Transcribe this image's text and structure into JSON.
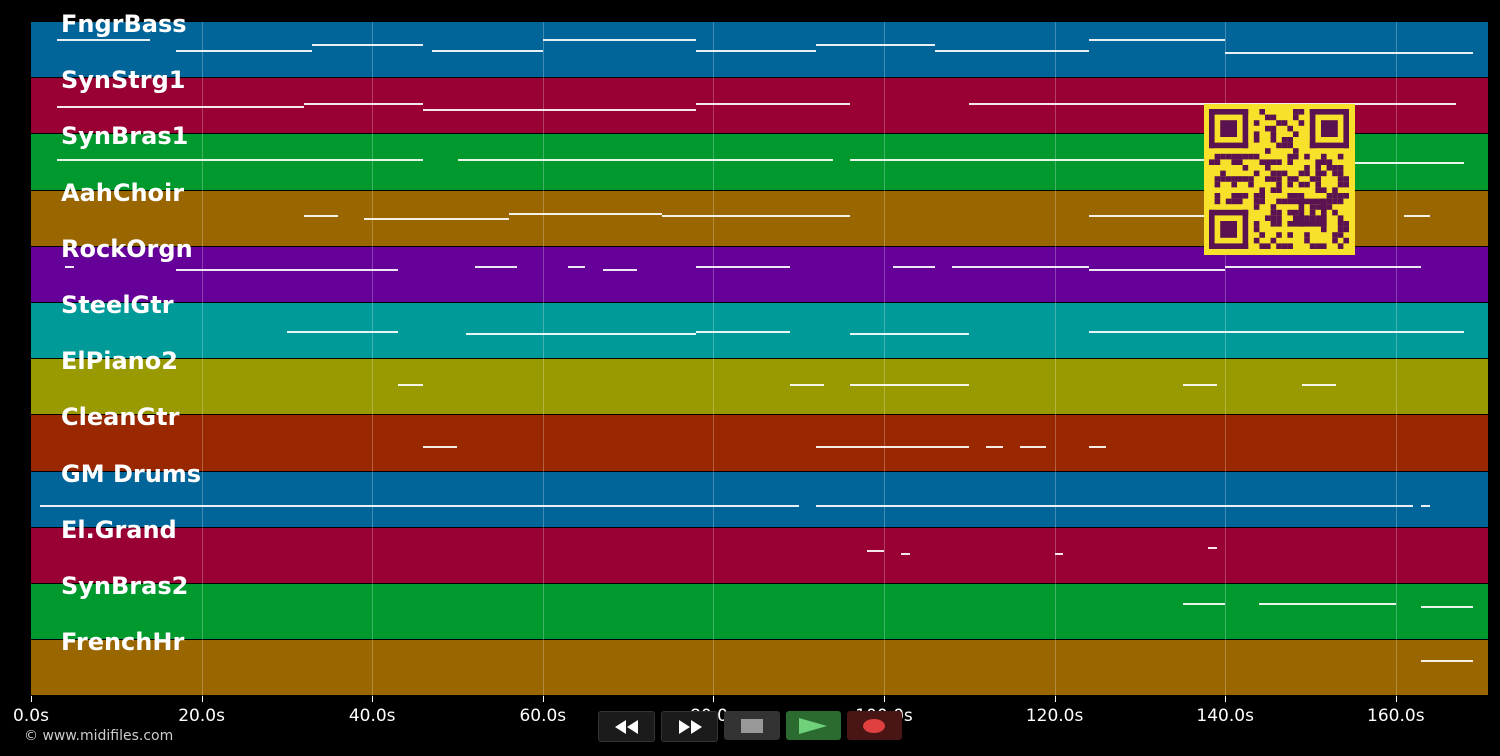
{
  "tracks": [
    {
      "name": "FngrBass",
      "color": "#02659a"
    },
    {
      "name": "SynStrg1",
      "color": "#990033"
    },
    {
      "name": "SynBras1",
      "color": "#00992d"
    },
    {
      "name": "AahChoir",
      "color": "#9a6600"
    },
    {
      "name": "RockOrgn",
      "color": "#650099"
    },
    {
      "name": "SteelGtr",
      "color": "#009a99"
    },
    {
      "name": "ElPiano2",
      "color": "#999a02"
    },
    {
      "name": "CleanGtr",
      "color": "#992800"
    },
    {
      "name": "GM Drums",
      "color": "#02659a"
    },
    {
      "name": "El.Grand",
      "color": "#990033"
    },
    {
      "name": "SynBras2",
      "color": "#00992d"
    },
    {
      "name": "FrenchHr",
      "color": "#9a6600"
    }
  ],
  "timeline": {
    "ticks": [
      "0.0s",
      "20.0s",
      "40.0s",
      "60.0s",
      "80.0s",
      "100.0s",
      "120.0s",
      "140.0s",
      "160.0s"
    ],
    "max_seconds": 171
  },
  "copyright": "© www.midifiles.com",
  "controls": {
    "rewind": "rewind-icon",
    "fast_forward": "fast-forward-icon",
    "stop": "stop-icon",
    "play": "play-icon",
    "record": "record-icon"
  },
  "notes": [
    [
      [
        3,
        14,
        0.3
      ],
      [
        17,
        33,
        0.5
      ],
      [
        33,
        46,
        0.4
      ],
      [
        47,
        60,
        0.5
      ],
      [
        60,
        78,
        0.3
      ],
      [
        78,
        92,
        0.5
      ],
      [
        92,
        106,
        0.4
      ],
      [
        106,
        124,
        0.5
      ],
      [
        124,
        140,
        0.3
      ],
      [
        140,
        169,
        0.55
      ]
    ],
    [
      [
        3,
        32,
        0.5
      ],
      [
        32,
        46,
        0.45
      ],
      [
        46,
        78,
        0.55
      ],
      [
        78,
        96,
        0.45
      ],
      [
        110,
        134,
        0.45
      ],
      [
        134,
        167,
        0.45
      ]
    ],
    [
      [
        3,
        46,
        0.45
      ],
      [
        50,
        94,
        0.45
      ],
      [
        96,
        142,
        0.45
      ],
      [
        142,
        168,
        0.5
      ]
    ],
    [
      [
        32,
        36,
        0.45
      ],
      [
        39,
        56,
        0.5
      ],
      [
        56,
        74,
        0.4
      ],
      [
        74,
        96,
        0.45
      ],
      [
        124,
        134,
        0.45
      ],
      [
        134,
        142,
        0.45
      ],
      [
        161,
        164,
        0.45
      ]
    ],
    [
      [
        4,
        5,
        0.35
      ],
      [
        17,
        43,
        0.4
      ],
      [
        52,
        57,
        0.35
      ],
      [
        63,
        65,
        0.35
      ],
      [
        67,
        71,
        0.4
      ],
      [
        78,
        89,
        0.35
      ],
      [
        101,
        106,
        0.35
      ],
      [
        108,
        124,
        0.35
      ],
      [
        124,
        140,
        0.4
      ],
      [
        140,
        155,
        0.35
      ],
      [
        155,
        163,
        0.35
      ]
    ],
    [
      [
        30,
        43,
        0.5
      ],
      [
        51,
        78,
        0.55
      ],
      [
        78,
        89,
        0.5
      ],
      [
        96,
        110,
        0.55
      ],
      [
        124,
        168,
        0.5
      ]
    ],
    [
      [
        43,
        46,
        0.45
      ],
      [
        89,
        93,
        0.45
      ],
      [
        96,
        110,
        0.45
      ],
      [
        135,
        139,
        0.45
      ],
      [
        149,
        153,
        0.45
      ]
    ],
    [
      [
        46,
        50,
        0.55
      ],
      [
        92,
        110,
        0.55
      ],
      [
        112,
        114,
        0.55
      ],
      [
        116,
        119,
        0.55
      ],
      [
        124,
        126,
        0.55
      ]
    ],
    [
      [
        1,
        48,
        0.6
      ],
      [
        48,
        90,
        0.6
      ],
      [
        92,
        136,
        0.6
      ],
      [
        136,
        162,
        0.6
      ],
      [
        163,
        164,
        0.6
      ]
    ],
    [
      [
        98,
        100,
        0.4
      ],
      [
        102,
        103,
        0.45
      ],
      [
        120,
        121,
        0.45
      ],
      [
        138,
        139,
        0.35
      ]
    ],
    [
      [
        135,
        140,
        0.35
      ],
      [
        144,
        151,
        0.35
      ],
      [
        151,
        160,
        0.35
      ],
      [
        163,
        169,
        0.4
      ]
    ],
    [
      [
        163,
        169,
        0.35
      ]
    ]
  ]
}
